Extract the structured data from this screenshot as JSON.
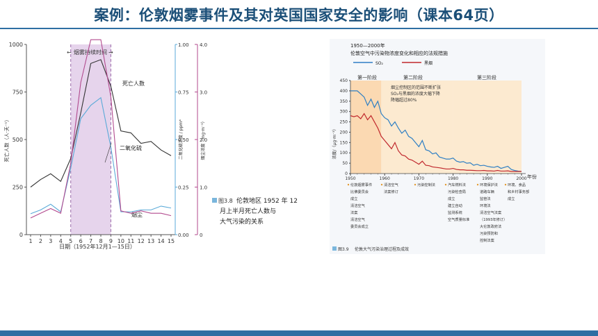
{
  "slide": {
    "title": "案例：伦敦烟雾事件及其对英国国家安全的影响（课本64页）"
  },
  "colors": {
    "accent": "#2e6fa3",
    "title": "#1b4f78",
    "deaths": "#333333",
    "so2": "#5aaad8",
    "smoke": "#b24a8e",
    "smog_band": "#e6d4ec",
    "stage_band": "#fde7c8"
  },
  "figure1": {
    "caption_no": "图3.8",
    "caption_text": "伦敦地区 1952 年 12 月上半月死亡人数与大气污染的关系",
    "caption_lines": [
      "伦敦地区 1952 年 12",
      "月上半月死亡人数与",
      "大气污染的关系"
    ],
    "band_label": "烟雾持续时间",
    "label_deaths": "死亡人数",
    "label_so2": "二氧化硫",
    "label_smoke": "烟尘",
    "xlabel": "日期（1952年12月1—15日）",
    "ylabel_left": "死亡人数（人·天⁻¹）",
    "ylabel_mid": "二氧化硫浓度 / ppm*",
    "ylabel_right": "烟尘浓度（mg·m⁻³）",
    "y_left_ticks": [
      "1000",
      "750",
      "500",
      "250",
      "0"
    ],
    "y_mid_ticks": [
      "1.00",
      "0.75",
      "0.50",
      "0.25",
      "0.00"
    ],
    "y_right_ticks": [
      "4.0",
      "3.0",
      "2.0",
      "1.0",
      "0"
    ],
    "x_ticks": [
      "1",
      "2",
      "3",
      "4",
      "5",
      "6",
      "7",
      "8",
      "9",
      "10",
      "11",
      "12",
      "13",
      "14",
      "15"
    ]
  },
  "figure2": {
    "header_year": "1950—2000年",
    "header_title": "伦敦空气中污染物浓度变化和相应的法规措施",
    "legend_so2": "SO₂",
    "legend_smoke": "黑烟",
    "stage1": "第一阶段",
    "stage2": "第二阶段",
    "stage3": "第三阶段",
    "annot_lines": [
      "烟尘控制区的范围不断扩张",
      "SO₂与黑烟的浓度大幅下降",
      "降幅超过80%"
    ],
    "ylabel": "浓度/（μg·m⁻³）",
    "x_unit": "年份",
    "y_ticks": [
      "450",
      "400",
      "350",
      "300",
      "250",
      "200",
      "150",
      "100",
      "50",
      "0"
    ],
    "x_ticks": [
      "1950",
      "1960",
      "1970",
      "1980",
      "1990",
      "2000"
    ],
    "measures": [
      [
        "伦敦烟雾事件",
        "比佛委员会",
        "成立",
        "清洁空气",
        "法案",
        "清洁空气",
        "委员会成立"
      ],
      [
        "清洁空气",
        "法案修订"
      ],
      [
        "污染控制法"
      ],
      [
        "汽车燃料法",
        "污染检查局",
        "成立",
        "建立自动",
        "监测系统",
        "空气质量标准"
      ],
      [
        "环境保护法",
        "道路车辆",
        "监管法",
        "环境法",
        "清洁空气法案",
        "（1993年修订）",
        "大伦敦政府法",
        "污染预防和",
        "控制法案"
      ],
      [
        "环境、食品",
        "和乡村事务部",
        "成立"
      ]
    ],
    "caption_no": "图3.9",
    "caption_text": "伦敦大气污染治理过程及成效"
  },
  "chart_data": [
    {
      "type": "line",
      "title": "",
      "x": [
        1,
        2,
        3,
        4,
        5,
        6,
        7,
        8,
        9,
        10,
        11,
        12,
        13,
        14,
        15
      ],
      "xlabel": "日期（1952年12月1—15日）",
      "series": [
        {
          "name": "死亡人数",
          "axis": "left",
          "values": [
            250,
            290,
            320,
            280,
            400,
            640,
            900,
            920,
            780,
            545,
            535,
            480,
            490,
            445,
            415
          ]
        },
        {
          "name": "二氧化硫",
          "axis": "mid",
          "values": [
            0.11,
            0.13,
            0.16,
            0.12,
            0.35,
            0.61,
            0.68,
            0.72,
            0.46,
            0.12,
            0.12,
            0.13,
            0.13,
            0.15,
            0.14
          ]
        },
        {
          "name": "烟尘",
          "axis": "right",
          "values": [
            0.35,
            0.45,
            0.55,
            0.45,
            1.5,
            3.2,
            4.1,
            4.1,
            2.9,
            0.5,
            0.45,
            0.5,
            0.45,
            0.45,
            0.4
          ]
        }
      ],
      "ylim_left": [
        0,
        1000
      ],
      "ylim_mid": [
        0,
        1.0
      ],
      "ylim_right": [
        0,
        4.0
      ],
      "smog_period": [
        5,
        9
      ],
      "annotations": [
        "烟雾持续时间"
      ]
    },
    {
      "type": "line",
      "title": "伦敦空气中污染物浓度变化和相应的法规措施",
      "x": [
        1950,
        1951,
        1952,
        1953,
        1954,
        1955,
        1956,
        1957,
        1958,
        1959,
        1960,
        1961,
        1962,
        1963,
        1964,
        1965,
        1966,
        1967,
        1968,
        1969,
        1970,
        1971,
        1972,
        1973,
        1974,
        1975,
        1976,
        1977,
        1978,
        1979,
        1980,
        1981,
        1982,
        1983,
        1984,
        1985,
        1986,
        1987,
        1988,
        1989,
        1990,
        1991,
        1992,
        1993,
        1994,
        1995,
        1996,
        1997,
        1998,
        1999,
        2000
      ],
      "xlabel": "年份",
      "ylabel": "浓度/（μg·m⁻³）",
      "ylim": [
        0,
        450
      ],
      "xlim": [
        1950,
        2000
      ],
      "series": [
        {
          "name": "SO₂",
          "values": [
            400,
            400,
            400,
            385,
            370,
            330,
            360,
            320,
            350,
            290,
            270,
            260,
            230,
            250,
            220,
            195,
            210,
            180,
            170,
            150,
            130,
            160,
            115,
            110,
            95,
            100,
            80,
            75,
            70,
            70,
            75,
            60,
            55,
            58,
            50,
            52,
            40,
            45,
            38,
            40,
            35,
            32,
            30,
            35,
            25,
            30,
            35,
            20,
            15,
            12,
            10
          ]
        },
        {
          "name": "黑烟",
          "values": [
            280,
            275,
            280,
            265,
            290,
            260,
            280,
            250,
            220,
            180,
            160,
            140,
            120,
            150,
            110,
            90,
            85,
            70,
            65,
            55,
            45,
            60,
            40,
            38,
            32,
            30,
            28,
            25,
            22,
            22,
            25,
            20,
            18,
            18,
            16,
            16,
            15,
            14,
            14,
            15,
            13,
            13,
            12,
            15,
            12,
            12,
            13,
            10,
            10,
            10,
            10
          ]
        }
      ],
      "stages": [
        {
          "name": "第一阶段",
          "from": 1950,
          "to": 1959
        },
        {
          "name": "第二阶段",
          "from": 1959,
          "to": 1980
        },
        {
          "name": "第三阶段",
          "from": 1980,
          "to": 2000
        }
      ],
      "legend": "top-left"
    }
  ]
}
